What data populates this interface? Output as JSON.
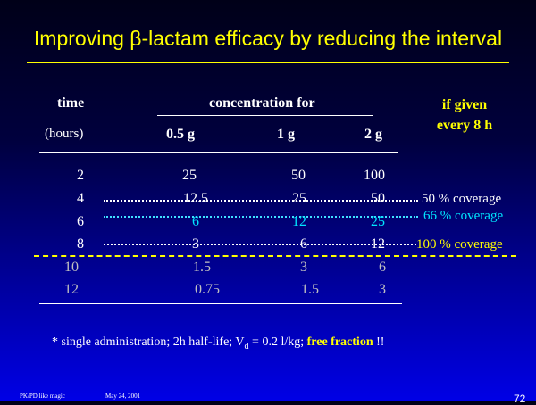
{
  "title": "Improving β-lactam efficacy by reducing the interval",
  "headers": {
    "time": "time",
    "hours": "(hours)",
    "concentration_for": "concentration for",
    "doses": [
      "0.5 g",
      "1 g",
      "2 g"
    ],
    "if_given_line1": "if given",
    "if_given_line2": "every 8 h"
  },
  "rows": [
    {
      "time": "2",
      "values": [
        "25",
        "50",
        "100"
      ]
    },
    {
      "time": "4",
      "values": [
        "12.5",
        "25",
        "50"
      ]
    },
    {
      "time": "6",
      "values": [
        "6",
        "12",
        "25"
      ]
    },
    {
      "time": "8",
      "values": [
        "3",
        "6",
        "12"
      ]
    },
    {
      "time": "10",
      "values": [
        "1.5",
        "3",
        "6"
      ]
    },
    {
      "time": "12",
      "values": [
        "0.75",
        "1.5",
        "3"
      ]
    }
  ],
  "coverage": [
    {
      "label": "50 % coverage"
    },
    {
      "label": "66 % coverage"
    },
    {
      "label": "100 % coverage"
    }
  ],
  "footnote": {
    "prefix": "* single administration; 2h half-life; V",
    "subscript": "d",
    "middle": " = 0.2 l/kg; ",
    "bold": "free fraction",
    "suffix": " !!"
  },
  "footer": {
    "left": "PK/PD like magic",
    "date": "May 24, 2001",
    "page": "72"
  },
  "colors": {
    "title": "#ffff00",
    "highlight": "#ffff00",
    "row_6": "#00e5ff",
    "late_rows": "#c0c0c0"
  }
}
